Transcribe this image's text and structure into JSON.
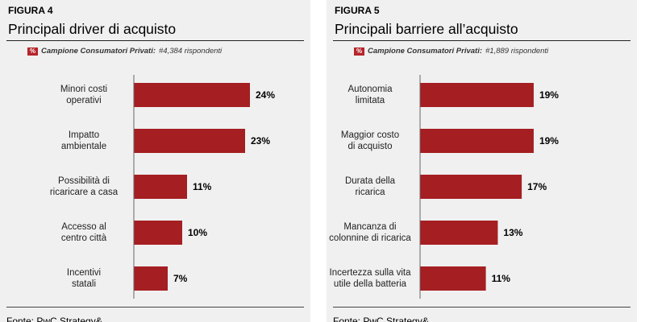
{
  "colors": {
    "bar": "#a51e22",
    "badge": "#b5252a"
  },
  "panels": [
    {
      "figure_label": "FIGURA 4",
      "title": "Principali driver di acquisto",
      "sample_badge": "%",
      "sample_label": "Campione Consumatori Privati:",
      "sample_count": "#4,384 rispondenti",
      "source": "Fonte: PwC Strategy&"
    },
    {
      "figure_label": "FIGURA 5",
      "title": "Principali barriere all’acquisto",
      "sample_badge": "%",
      "sample_label": "Campione Consumatori Privati:",
      "sample_count": "#1,889 rispondenti",
      "source": "Fonte: PwC Strategy&"
    }
  ],
  "chart_data": [
    {
      "type": "bar",
      "orientation": "horizontal",
      "title": "Principali driver di acquisto",
      "categories": [
        [
          "Minori costi",
          "operativi"
        ],
        [
          "Impatto",
          "ambientale"
        ],
        [
          "Possibilità di",
          "ricaricare a casa"
        ],
        [
          "Accesso al",
          "centro città"
        ],
        [
          "Incentivi",
          "statali"
        ]
      ],
      "values": [
        24,
        23,
        11,
        10,
        7
      ],
      "value_labels": [
        "24%",
        "23%",
        "11%",
        "10%",
        "7%"
      ],
      "unit": "%",
      "xlim": [
        0,
        30
      ],
      "grid": false,
      "legend": "none"
    },
    {
      "type": "bar",
      "orientation": "horizontal",
      "title": "Principali barriere all’acquisto",
      "categories": [
        [
          "Autonomia",
          "limitata"
        ],
        [
          "Maggior costo",
          "di acquisto"
        ],
        [
          "Durata della",
          "ricarica"
        ],
        [
          "Mancanza di",
          "colonnine di ricarica"
        ],
        [
          "Incertezza sulla vita",
          "utile della batteria"
        ]
      ],
      "values": [
        19,
        19,
        17,
        13,
        11
      ],
      "value_labels": [
        "19%",
        "19%",
        "17%",
        "13%",
        "11%"
      ],
      "unit": "%",
      "xlim": [
        0,
        24.4
      ],
      "grid": false,
      "legend": "none"
    }
  ]
}
